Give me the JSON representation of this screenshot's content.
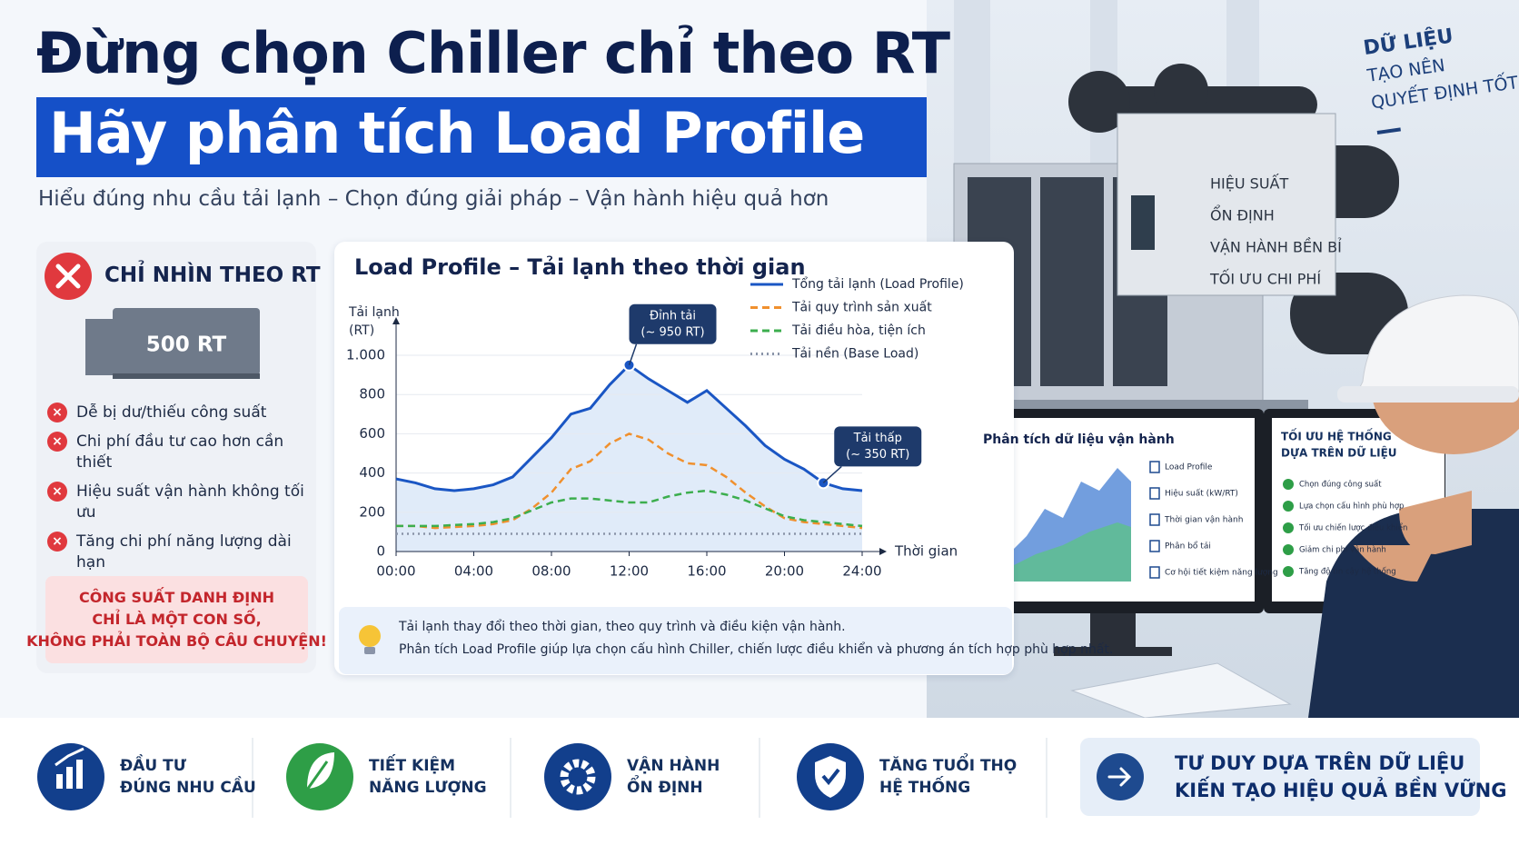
{
  "header": {
    "title": "Đừng chọn Chiller chỉ theo RT",
    "highlight": "Hãy phân tích Load Profile",
    "subtitle": "Hiểu đúng nhu cầu tải lạnh – Chọn đúng giải pháp – Vận hành hiệu quả hơn"
  },
  "rt_panel": {
    "title": "CHỈ NHÌN THEO RT",
    "unit_label": "500 RT",
    "issues": [
      "Dễ bị dư/thiếu công suất",
      "Chi phí đầu tư cao hơn cần thiết",
      "Hiệu suất vận hành không tối ưu",
      "Tăng chi phí năng lượng dài hạn"
    ],
    "callout": [
      "CÔNG SUẤT DANH ĐỊNH",
      "CHỈ LÀ MỘT CON SỐ,",
      "KHÔNG PHẢI TOÀN BỘ CÂU CHUYỆN!"
    ]
  },
  "chart_data": {
    "type": "line",
    "title": "Load Profile – Tải lạnh theo thời gian",
    "ylabel": [
      "Tải lạnh",
      "(RT)"
    ],
    "xlabel": "Thời gian",
    "x": [
      0,
      1,
      2,
      3,
      4,
      5,
      6,
      7,
      8,
      9,
      10,
      11,
      12,
      13,
      14,
      15,
      16,
      17,
      18,
      19,
      20,
      21,
      22,
      23,
      24
    ],
    "xlim": [
      0,
      24
    ],
    "xticks": [
      {
        "value": 0,
        "label": "00:00"
      },
      {
        "value": 4,
        "label": "04:00"
      },
      {
        "value": 8,
        "label": "08:00"
      },
      {
        "value": 12,
        "label": "12:00"
      },
      {
        "value": 16,
        "label": "16:00"
      },
      {
        "value": 20,
        "label": "20:00"
      },
      {
        "value": 24,
        "label": "24:00"
      }
    ],
    "ylim": [
      0,
      1000
    ],
    "yticks": [
      0,
      200,
      400,
      600,
      800,
      {
        "value": 1000,
        "label": "1.000"
      }
    ],
    "legend": "top-right",
    "series": [
      {
        "name": "Tổng tải lạnh (Load Profile)",
        "color": "#1a56c4",
        "style": "solid",
        "fill": "#dbe8f8",
        "values": [
          370,
          350,
          320,
          310,
          320,
          340,
          380,
          480,
          580,
          700,
          730,
          850,
          950,
          880,
          820,
          760,
          820,
          730,
          640,
          540,
          470,
          420,
          350,
          320,
          310
        ]
      },
      {
        "name": "Tải quy trình sản xuất",
        "color": "#f0902e",
        "style": "dashed",
        "values": [
          130,
          130,
          120,
          125,
          130,
          140,
          160,
          220,
          300,
          420,
          460,
          550,
          600,
          570,
          500,
          450,
          440,
          380,
          300,
          230,
          170,
          150,
          140,
          130,
          120
        ]
      },
      {
        "name": "Tải điều hòa, tiện ích",
        "color": "#3cae4e",
        "style": "dashed",
        "values": [
          130,
          130,
          130,
          135,
          140,
          150,
          170,
          210,
          250,
          270,
          270,
          260,
          250,
          250,
          280,
          300,
          310,
          290,
          260,
          220,
          180,
          160,
          150,
          140,
          130
        ]
      },
      {
        "name": "Tải nền (Base Load)",
        "color": "#8a94a8",
        "style": "dotted",
        "values": [
          90,
          90,
          90,
          90,
          90,
          90,
          90,
          90,
          90,
          90,
          90,
          90,
          90,
          90,
          90,
          90,
          90,
          90,
          90,
          90,
          90,
          90,
          90,
          90,
          90
        ]
      }
    ],
    "annotations": [
      {
        "text": [
          "Đỉnh tải",
          "(~ 950 RT)"
        ],
        "x": 12
      },
      {
        "text": [
          "Tải thấp",
          "(~ 350 RT)"
        ],
        "x": 22
      }
    ]
  },
  "insight": [
    "Tải lạnh thay đổi theo thời gian, theo quy trình và điều kiện vận hành.",
    "Phân tích Load Profile giúp lựa chọn cấu hình Chiller, chiến lược điều khiển và phương án tích hợp phù hợp nhất."
  ],
  "photo": {
    "tagline": [
      "DỮ LIỆU",
      "TẠO NÊN",
      "QUYẾT ĐỊNH TỐT HƠN"
    ],
    "chiller_panel": [
      "HIỆU SUẤT",
      "ỔN ĐỊNH",
      "VẬN HÀNH BỀN BỈ",
      "TỐI ƯU CHI PHÍ"
    ],
    "monitor_1": {
      "title": "Phân tích dữ liệu vận hành",
      "items": [
        "Load Profile",
        "Hiệu suất (kW/RT)",
        "Thời gian vận hành",
        "Phân bổ tải",
        "Cơ hội tiết kiệm năng lượng"
      ]
    },
    "monitor_2": {
      "title": [
        "TỐI ƯU HỆ THỐNG",
        "DỰA TRÊN DỮ LIỆU"
      ],
      "items": [
        "Chọn đúng công suất",
        "Lựa chọn cấu hình phù hợp",
        "Tối ưu chiến lược điều khiển",
        "Giảm chi phí vận hành",
        "Tăng độ tin cậy hệ thống"
      ]
    }
  },
  "benefits": [
    {
      "lines": [
        "ĐẦU TƯ",
        "ĐÚNG NHU CẦU"
      ],
      "color": "#123f8c"
    },
    {
      "lines": [
        "TIẾT KIỆM",
        "NĂNG LƯỢNG"
      ],
      "color": "#2e9e47"
    },
    {
      "lines": [
        "VẬN HÀNH",
        "ỔN ĐỊNH"
      ],
      "color": "#123f8c"
    },
    {
      "lines": [
        "TĂNG TUỔI THỌ",
        "HỆ THỐNG"
      ],
      "color": "#123f8c"
    }
  ],
  "cta": [
    "TƯ DUY DỰA TRÊN DỮ LIỆU",
    "KIẾN TẠO HIỆU QUẢ BỀN VỮNG"
  ]
}
